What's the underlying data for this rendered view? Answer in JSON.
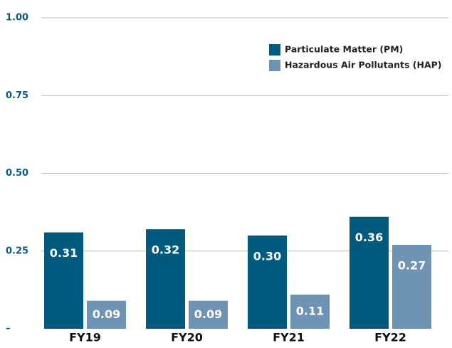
{
  "chart_data": {
    "type": "bar",
    "categories": [
      "FY19",
      "FY20",
      "FY21",
      "FY22"
    ],
    "series": [
      {
        "name": "Particulate Matter (PM)",
        "color": "#005a7d",
        "values": [
          0.31,
          0.32,
          0.3,
          0.36
        ],
        "value_labels": [
          "0.31",
          "0.32",
          "0.30",
          "0.36"
        ]
      },
      {
        "name": "Hazardous Air Pollutants (HAP)",
        "color": "#6e93b3",
        "values": [
          0.09,
          0.09,
          0.11,
          0.27
        ],
        "value_labels": [
          "0.09",
          "0.09",
          "0.11",
          "0.27"
        ]
      }
    ],
    "ylim": [
      0,
      1
    ],
    "yticks": [
      {
        "value": 0,
        "label": "–"
      },
      {
        "value": 0.25,
        "label": "0.25"
      },
      {
        "value": 0.5,
        "label": "0.50"
      },
      {
        "value": 0.75,
        "label": "0.75"
      },
      {
        "value": 1,
        "label": "1.00"
      }
    ],
    "grid": true,
    "legend": "upper right"
  }
}
